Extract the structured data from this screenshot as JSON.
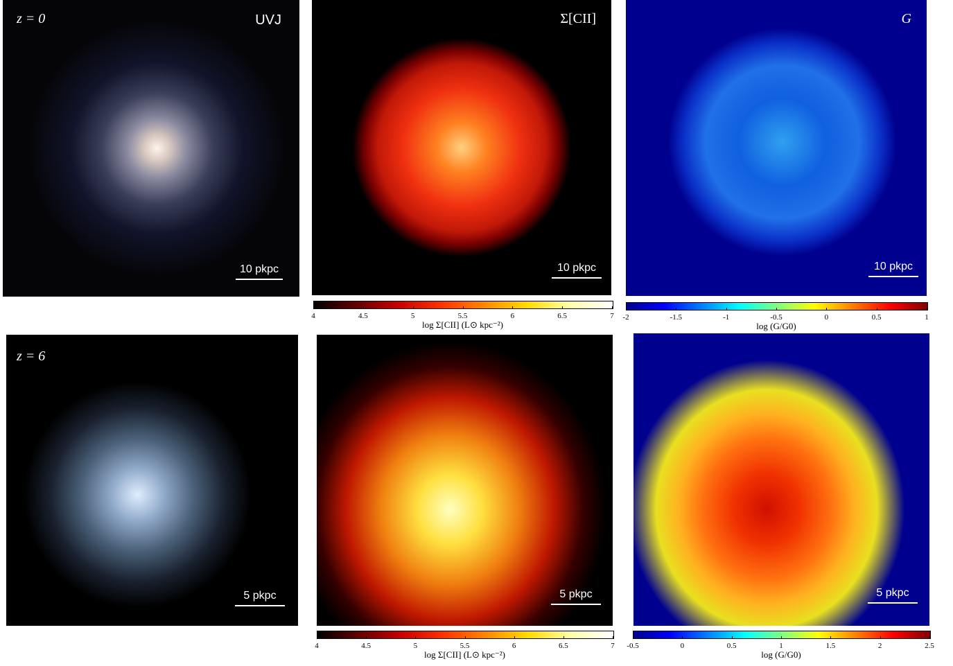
{
  "panels": [
    {
      "label": "z = 0",
      "title": "UVJ",
      "scalebar": "10 pkpc"
    },
    {
      "title": "Σ[CII]",
      "scalebar": "10 pkpc"
    },
    {
      "title": "G",
      "scalebar": "10 pkpc"
    },
    {
      "label": "z = 6",
      "scalebar": "5 pkpc"
    },
    {
      "scalebar": "5 pkpc"
    },
    {
      "scalebar": "5 pkpc"
    }
  ],
  "colorbars": [
    {
      "label": "log Σ[CII] (L⊙ kpc⁻²)",
      "lim": [
        4,
        7
      ],
      "ticks": [
        4,
        4.5,
        5,
        5.5,
        6,
        6.5,
        7
      ]
    },
    {
      "label": "log (G/G0)",
      "lim": [
        -2,
        1
      ],
      "ticks": [
        -2,
        -1.5,
        -1,
        -0.5,
        0,
        0.5,
        1
      ]
    },
    {
      "label": "log Σ[CII] (L⊙ kpc⁻²)",
      "lim": [
        4,
        7
      ],
      "ticks": [
        4,
        4.5,
        5,
        5.5,
        6,
        6.5,
        7
      ]
    },
    {
      "label": "log (G/G0)",
      "lim": [
        -0.5,
        2.5
      ],
      "ticks": [
        -0.5,
        0,
        0.5,
        1,
        1.5,
        2,
        2.5
      ]
    }
  ]
}
